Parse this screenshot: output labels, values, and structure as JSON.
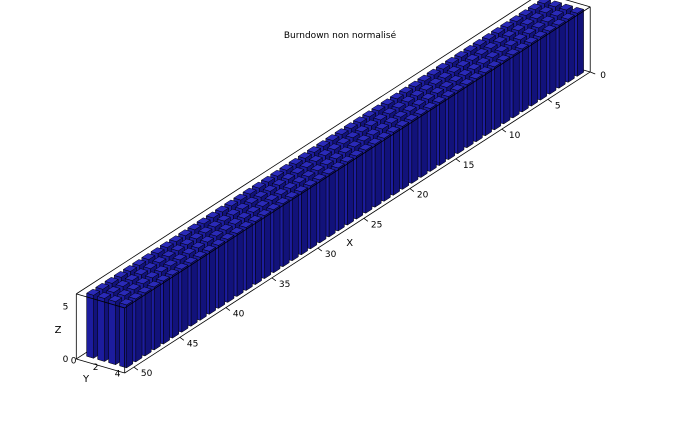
{
  "chart_data": {
    "type": "bar3d",
    "title": "Burndown non normalisé",
    "xlabel": "X",
    "ylabel": "Y",
    "zlabel": "Z",
    "x_ticks": [
      5,
      10,
      15,
      20,
      25,
      30,
      35,
      40,
      45,
      50
    ],
    "y_ticks": [
      0,
      2,
      4
    ],
    "z_ticks": [
      0,
      5
    ],
    "z_ticks_right": [
      0
    ],
    "xlim": [
      0,
      50
    ],
    "ylim": [
      0,
      4
    ],
    "zlim": [
      0,
      5
    ],
    "bar_color": "#1c1c9e",
    "box": true,
    "grid": false,
    "series": [
      {
        "y": 1,
        "values": [
          6,
          6,
          6,
          6,
          6,
          6,
          6,
          6,
          6,
          6,
          6,
          6,
          6,
          6,
          6,
          6,
          6,
          6,
          6,
          6,
          6,
          6,
          6,
          6,
          6,
          6,
          6,
          6,
          6,
          6,
          6,
          6,
          6,
          6,
          6,
          6,
          6,
          6,
          6,
          6,
          6,
          6,
          6,
          6,
          6,
          6,
          6,
          6,
          6,
          6
        ]
      },
      {
        "y": 2,
        "values": [
          6,
          6,
          6,
          6,
          6,
          6,
          6,
          6,
          6,
          6,
          6,
          6,
          6,
          6,
          6,
          6,
          6,
          6,
          6,
          6,
          6,
          6,
          6,
          6,
          6,
          6,
          6,
          6,
          6,
          6,
          6,
          6,
          6,
          6,
          6,
          6,
          6,
          6,
          6,
          6,
          6,
          6,
          6,
          6,
          6,
          6,
          6,
          6,
          6,
          6
        ]
      },
      {
        "y": 3,
        "values": [
          6,
          6,
          6,
          6,
          6,
          6,
          6,
          6,
          6,
          6,
          6,
          6,
          6,
          6,
          6,
          6,
          6,
          6,
          6,
          6,
          6,
          6,
          6,
          6,
          6,
          6,
          6,
          6,
          6,
          6,
          6,
          6,
          6,
          6,
          6,
          6,
          6,
          6,
          6,
          6,
          6,
          6,
          6,
          6,
          6,
          6,
          6,
          6,
          6,
          6
        ]
      },
      {
        "y": 4,
        "values": [
          6,
          6,
          6,
          6,
          6,
          6,
          6,
          6,
          6,
          6,
          6,
          6,
          6,
          6,
          6,
          6,
          6,
          6,
          6,
          6,
          6,
          6,
          6,
          6,
          6,
          6,
          6,
          6,
          6,
          6,
          6,
          6,
          6,
          6,
          6,
          6,
          6,
          6,
          6,
          6,
          6,
          6,
          6,
          6,
          6,
          6,
          6,
          6,
          6,
          6
        ]
      }
    ]
  }
}
